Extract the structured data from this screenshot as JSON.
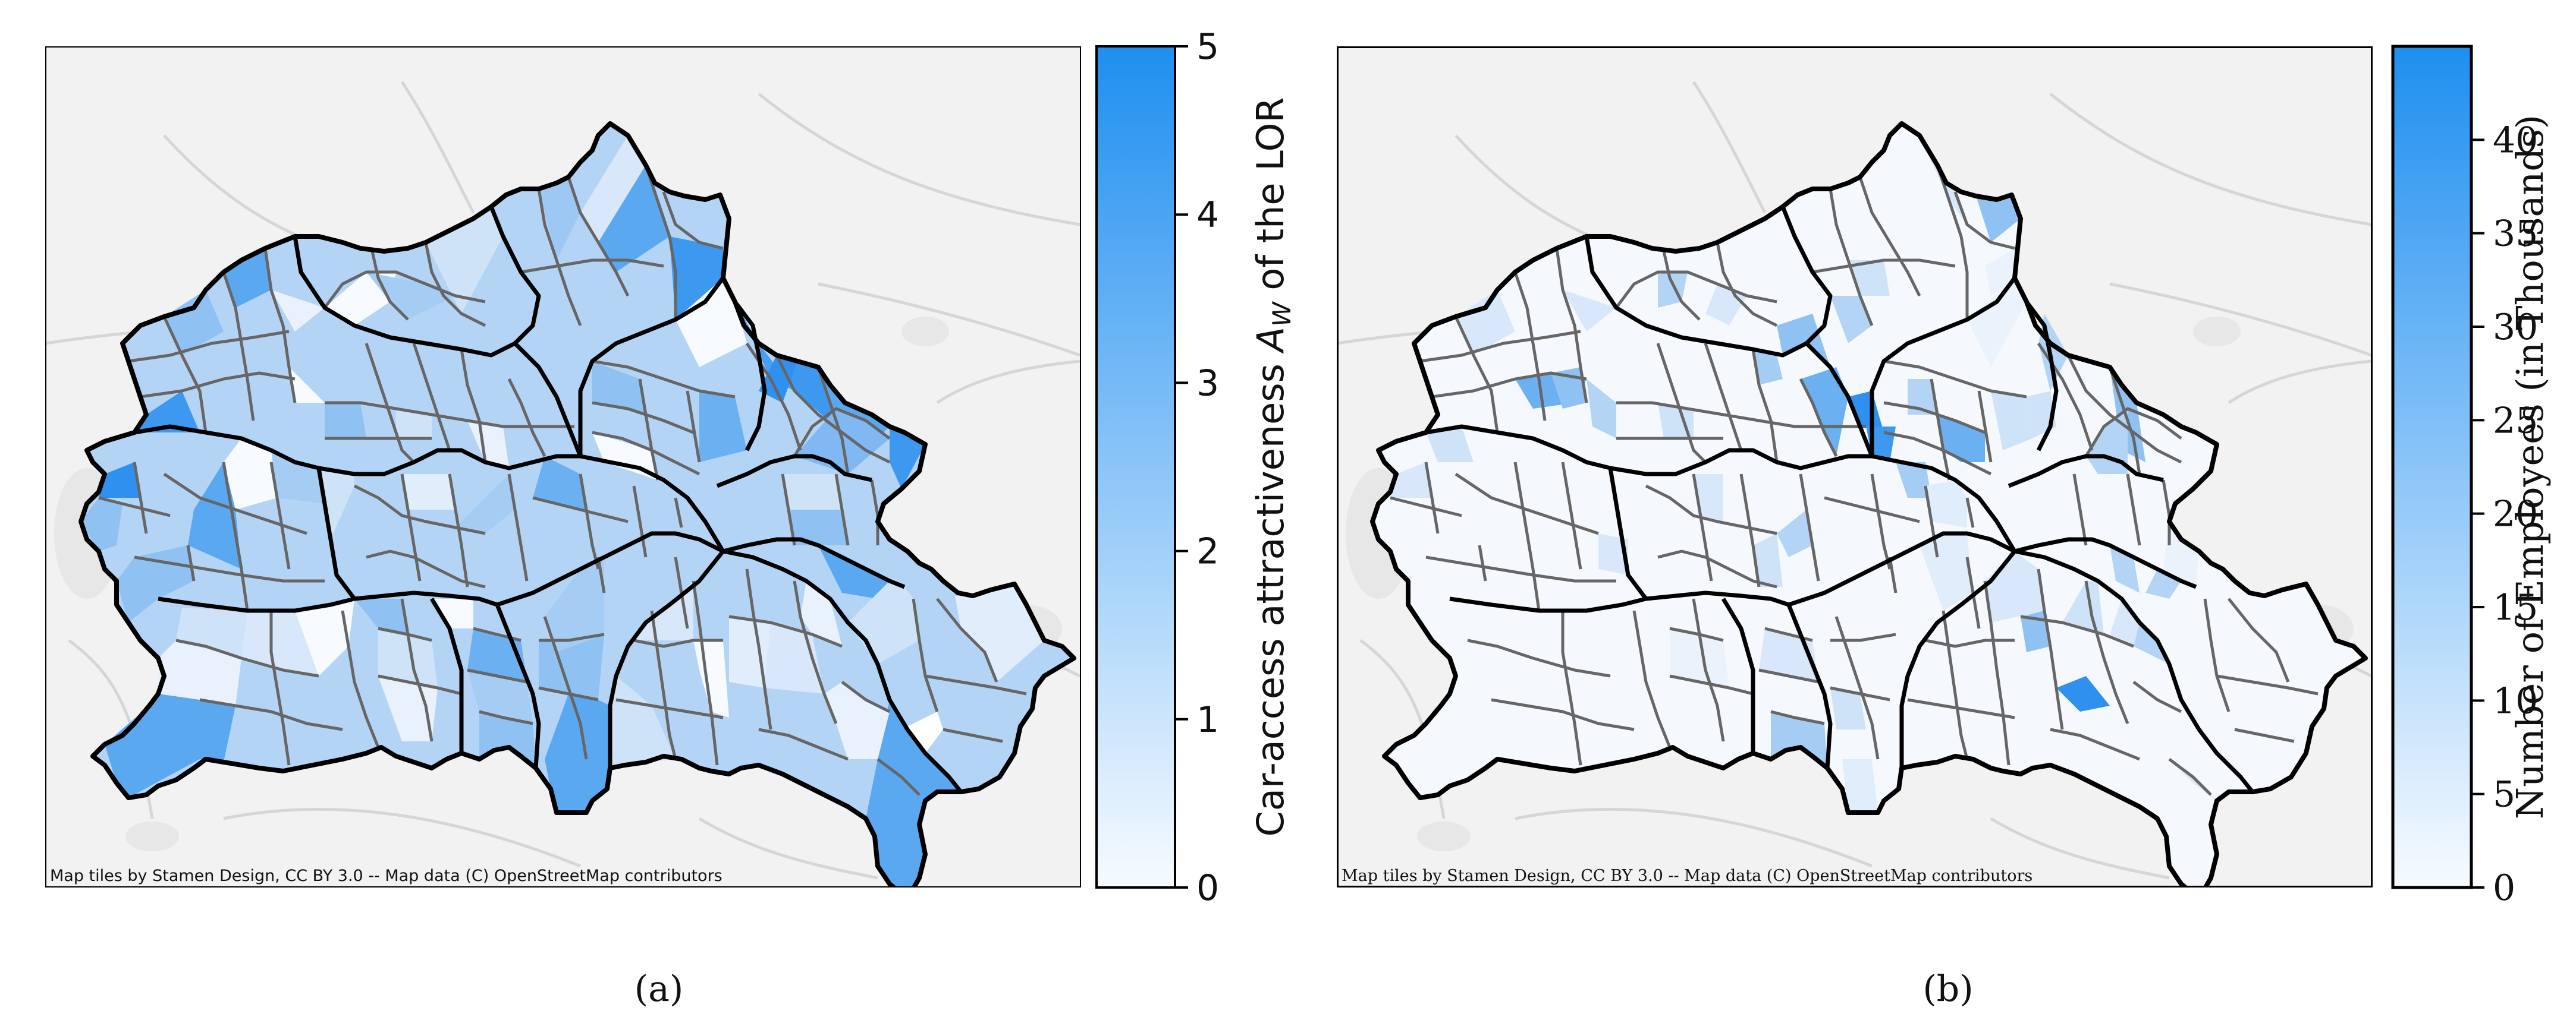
{
  "panels": [
    {
      "id": "a",
      "caption": "(a)",
      "attribution": "Map tiles by Stamen Design, CC BY 3.0 -- Map data (C) OpenStreetMap contributors",
      "colorbar": {
        "label_prefix": "Car-access attractiveness ",
        "label_symbol": "A",
        "label_subscript": "W",
        "label_suffix": " of the LOR",
        "min": 0,
        "max": 5,
        "ticks": [
          "0",
          "1",
          "2",
          "3",
          "4",
          "5"
        ]
      }
    },
    {
      "id": "b",
      "caption": "(b)",
      "attribution": "Map tiles by Stamen Design, CC BY 3.0 -- Map data (C) OpenStreetMap contributors",
      "colorbar": {
        "label": "Number of Employees (in Thousands)",
        "min": 0,
        "max": 45,
        "ticks": [
          "0",
          "5",
          "10",
          "15",
          "20",
          "25",
          "30",
          "35",
          "40"
        ]
      }
    }
  ],
  "colors": {
    "scale_low": "#f7fbff",
    "scale_high": "#1f8ff0",
    "district_border": "#000000",
    "lor_border": "#666666",
    "basemap": "#f2f2f2"
  }
}
